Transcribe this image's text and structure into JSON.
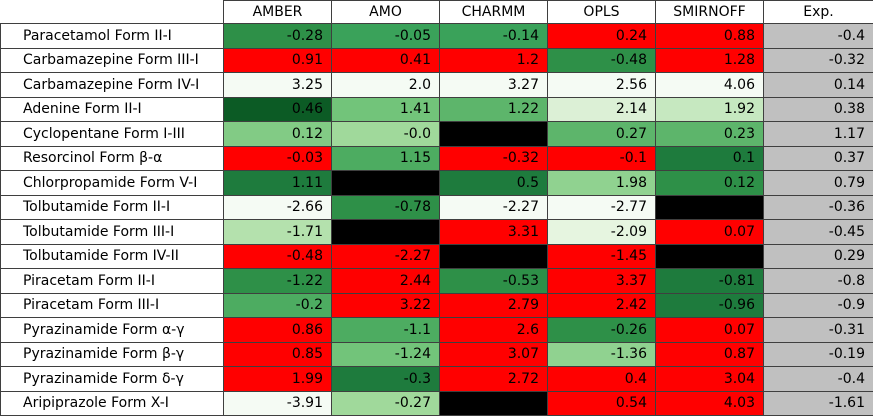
{
  "chart_data": {
    "type": "heatmap",
    "columns": [
      "AMBER",
      "AMO",
      "CHARMM",
      "OPLS",
      "SMIRNOFF",
      "Exp."
    ],
    "rows": [
      "Paracetamol Form II-I",
      "Carbamazepine Form III-I",
      "Carbamazepine Form IV-I",
      "Adenine Form II-I",
      "Cyclopentane Form I-III",
      "Resorcinol Form β-α",
      "Chlorpropamide Form V-I",
      "Tolbutamide Form II-I",
      "Tolbutamide Form III-I",
      "Tolbutamide Form IV-II",
      "Piracetam Form II-I",
      "Piracetam Form III-I",
      "Pyrazinamide Form α-γ",
      "Pyrazinamide Form β-γ",
      "Pyrazinamide Form δ-γ",
      "Aripiprazole Form X-I"
    ],
    "values": [
      [
        "-0.28",
        "-0.05",
        "-0.14",
        "0.24",
        "0.88",
        "-0.4"
      ],
      [
        "0.91",
        "0.41",
        "1.2",
        "-0.48",
        "1.28",
        "-0.32"
      ],
      [
        "3.25",
        "2.0",
        "3.27",
        "2.56",
        "4.06",
        "0.14"
      ],
      [
        "0.46",
        "1.41",
        "1.22",
        "2.14",
        "1.92",
        "0.38"
      ],
      [
        "0.12",
        "-0.0",
        null,
        "0.27",
        "0.23",
        "1.17"
      ],
      [
        "-0.03",
        "1.15",
        "-0.32",
        "-0.1",
        "0.1",
        "0.37"
      ],
      [
        "1.11",
        null,
        "0.5",
        "1.98",
        "0.12",
        "0.79"
      ],
      [
        "-2.66",
        "-0.78",
        "-2.27",
        "-2.77",
        null,
        "-0.36"
      ],
      [
        "-1.71",
        null,
        "3.31",
        "-2.09",
        "0.07",
        "-0.45"
      ],
      [
        "-0.48",
        "-2.27",
        null,
        "-1.45",
        null,
        "0.29"
      ],
      [
        "-1.22",
        "2.44",
        "-0.53",
        "3.37",
        "-0.81",
        "-0.8"
      ],
      [
        "-0.2",
        "3.22",
        "2.79",
        "2.42",
        "-0.96",
        "-0.9"
      ],
      [
        "0.86",
        "-1.1",
        "2.6",
        "-0.26",
        "0.07",
        "-0.31"
      ],
      [
        "0.85",
        "-1.24",
        "3.07",
        "-1.36",
        "0.87",
        "-0.19"
      ],
      [
        "1.99",
        "-0.3",
        "2.72",
        "0.4",
        "3.04",
        "-0.4"
      ],
      [
        "-3.91",
        "-0.27",
        null,
        "0.54",
        "4.03",
        "-1.61"
      ]
    ],
    "cell_colors": [
      [
        "#2e9048",
        "#3aa25a",
        "#3aa25a",
        "#ff0000",
        "#ff0000",
        "#c0c0c0"
      ],
      [
        "#ff0000",
        "#ff0000",
        "#ff0000",
        "#2e9048",
        "#ff0000",
        "#c0c0c0"
      ],
      [
        "#f5fbf4",
        "#f5fbf4",
        "#f5fbf4",
        "#f5fbf4",
        "#f5fbf4",
        "#c0c0c0"
      ],
      [
        "#0c5b25",
        "#72c47a",
        "#5db56b",
        "#dcf0d6",
        "#c6e8c0",
        "#c0c0c0"
      ],
      [
        "#82cb85",
        "#a0d99b",
        "#000000",
        "#5db56b",
        "#5db56b",
        "#c0c0c0"
      ],
      [
        "#ff0000",
        "#4dac61",
        "#ff0000",
        "#ff0000",
        "#1e7b3d",
        "#c0c0c0"
      ],
      [
        "#1e7b3d",
        "#000000",
        "#1e7b3d",
        "#90d290",
        "#2e9048",
        "#c0c0c0"
      ],
      [
        "#f5fbf4",
        "#2e9048",
        "#f5fbf4",
        "#f5fbf4",
        "#000000",
        "#c0c0c0"
      ],
      [
        "#b4e1ad",
        "#000000",
        "#ff0000",
        "#e6f5e0",
        "#ff0000",
        "#c0c0c0"
      ],
      [
        "#ff0000",
        "#ff0000",
        "#000000",
        "#ff0000",
        "#000000",
        "#c0c0c0"
      ],
      [
        "#2e9048",
        "#ff0000",
        "#2e9048",
        "#ff0000",
        "#1e7b3d",
        "#c0c0c0"
      ],
      [
        "#4dac61",
        "#ff0000",
        "#ff0000",
        "#ff0000",
        "#1e7b3d",
        "#c0c0c0"
      ],
      [
        "#ff0000",
        "#4dac61",
        "#ff0000",
        "#2e9048",
        "#ff0000",
        "#c0c0c0"
      ],
      [
        "#ff0000",
        "#72c47a",
        "#ff0000",
        "#90d290",
        "#ff0000",
        "#c0c0c0"
      ],
      [
        "#ff0000",
        "#1e7b3d",
        "#ff0000",
        "#ff0000",
        "#ff0000",
        "#c0c0c0"
      ],
      [
        "#f5fbf4",
        "#a0d99b",
        "#000000",
        "#ff0000",
        "#ff0000",
        "#c0c0c0"
      ]
    ],
    "title": "",
    "xlabel": "",
    "ylabel": ""
  }
}
